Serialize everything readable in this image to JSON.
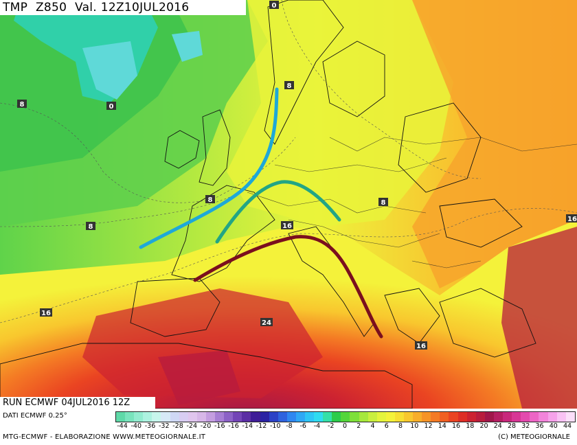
{
  "header": {
    "field": "TMP",
    "level": "Z850",
    "valid": "Val. 12Z10JUL2016"
  },
  "run": "RUN ECMWF 04JUL2016 12Z",
  "dati": "DATI ECMWF 0.25°",
  "credit": "MTG-ECMWF - ELABORAZIONE WWW.METEOGIORNALE.IT",
  "copyright": "(C) METEOGIORNALE",
  "contour_labels": [
    "0",
    "8",
    "0",
    "8",
    "8",
    "8",
    "16",
    "16",
    "16",
    "24",
    "16",
    "16",
    "8"
  ],
  "legend": {
    "ticks": [
      "-44",
      "-40",
      "-36",
      "-32",
      "-28",
      "-24",
      "-20",
      "-16",
      "-16",
      "-14",
      "-12",
      "-10",
      "-8",
      "-6",
      "-4",
      "-2",
      "0",
      "2",
      "4",
      "6",
      "8",
      "10",
      "12",
      "14",
      "16",
      "18",
      "20",
      "24",
      "28",
      "32",
      "36",
      "40",
      "44"
    ],
    "colors": [
      "#5fd9a8",
      "#79e4bd",
      "#93ecd0",
      "#adf2e0",
      "#c7f6ec",
      "#d6e9f7",
      "#cfd8f5",
      "#d8cdf2",
      "#e0c6ee",
      "#d7b7e8",
      "#c49ee0",
      "#a77fd4",
      "#8c62c6",
      "#7345b6",
      "#5b2ea4",
      "#3f1d97",
      "#2b23a3",
      "#2c42c6",
      "#2f63de",
      "#2f87f0",
      "#2fa8f5",
      "#2ec6f5",
      "#2fdcf0",
      "#34e0a8",
      "#2ccc4a",
      "#53d63a",
      "#7ee03a",
      "#a6e83c",
      "#c9ef3e",
      "#e4f43c",
      "#f4f23a",
      "#f7df33",
      "#f8c72e",
      "#f7ae2a",
      "#f69427",
      "#f47a24",
      "#f16022",
      "#ea4422",
      "#de2e26",
      "#cc2231",
      "#b81c3d",
      "#a0164a",
      "#b51e62",
      "#c8287c",
      "#d73695",
      "#e34aae",
      "#ec66c5",
      "#f284da",
      "#f6a2ea",
      "#f9c2f4",
      "#fbdff9"
    ]
  },
  "colors": {
    "ridge_cold_front": "#1ea8d8",
    "ridge_mid": "#22a585",
    "ridge_hot": "#7a0f1e"
  }
}
